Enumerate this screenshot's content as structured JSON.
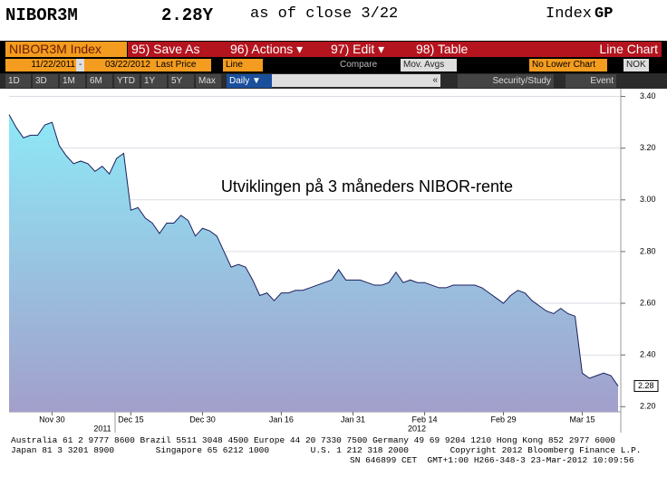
{
  "header": {
    "ticker": "NIBOR3M",
    "price": "2.28Y",
    "as_of": "as of close 3/22",
    "sector": "Index",
    "function": "GP"
  },
  "toolbar": {
    "security": "NIBOR3M Index",
    "buttons": [
      "95) Save As",
      "96) Actions ▾",
      "97) Edit ▾",
      "98) Table"
    ],
    "chart_kind": "Line Chart",
    "start_date": "11/22/2011",
    "date_sep": "-",
    "end_date": "03/22/2012",
    "field": "Last Price",
    "style": "Line",
    "compare": "Compare",
    "mov_avgs": "Mov. Avgs",
    "lower": "No Lower Chart",
    "currency": "NOK",
    "periods": [
      "1D",
      "3D",
      "1M",
      "6M",
      "YTD",
      "1Y",
      "5Y",
      "Max"
    ],
    "frequency": "Daily ▼",
    "collapse": "«",
    "study": "Security/Study",
    "event": "Event"
  },
  "chart_data": {
    "type": "line",
    "annotation": "Utviklingen på 3 måneders NIBOR-rente",
    "year_labels": [
      "2011",
      "2012"
    ],
    "categories": [
      null,
      null,
      null,
      null,
      null,
      null,
      "Nov 30",
      null,
      null,
      null,
      null,
      null,
      null,
      null,
      null,
      null,
      null,
      "Dec 15",
      null,
      null,
      null,
      null,
      null,
      null,
      null,
      null,
      null,
      "Dec 30",
      null,
      null,
      null,
      null,
      null,
      null,
      null,
      null,
      null,
      null,
      "Jan 16",
      null,
      null,
      null,
      null,
      null,
      null,
      null,
      null,
      null,
      "Jan 31",
      null,
      null,
      null,
      null,
      null,
      null,
      null,
      null,
      null,
      "Feb 14",
      null,
      null,
      null,
      null,
      null,
      null,
      null,
      null,
      null,
      null,
      "Feb 29",
      null,
      null,
      null,
      null,
      null,
      null,
      null,
      null,
      null,
      null,
      "Mar 15",
      null,
      null,
      null,
      null,
      null
    ],
    "series": [
      {
        "name": "NIBOR3M",
        "color": "#1b1f5e",
        "values": [
          3.33,
          3.28,
          3.24,
          3.25,
          3.25,
          3.29,
          3.3,
          3.21,
          3.17,
          3.14,
          3.15,
          3.14,
          3.11,
          3.13,
          3.1,
          3.16,
          3.18,
          2.96,
          2.97,
          2.93,
          2.91,
          2.87,
          2.91,
          2.91,
          2.94,
          2.92,
          2.86,
          2.89,
          2.88,
          2.86,
          2.8,
          2.74,
          2.75,
          2.74,
          2.69,
          2.63,
          2.64,
          2.61,
          2.64,
          2.64,
          2.65,
          2.65,
          2.66,
          2.67,
          2.68,
          2.69,
          2.73,
          2.69,
          2.69,
          2.69,
          2.68,
          2.67,
          2.67,
          2.68,
          2.72,
          2.68,
          2.69,
          2.68,
          2.68,
          2.67,
          2.66,
          2.66,
          2.67,
          2.67,
          2.67,
          2.67,
          2.66,
          2.64,
          2.62,
          2.6,
          2.63,
          2.65,
          2.64,
          2.61,
          2.59,
          2.57,
          2.56,
          2.58,
          2.56,
          2.55,
          2.33,
          2.31,
          2.32,
          2.33,
          2.32,
          2.28
        ],
        "fill_top": "#8ee9f7",
        "fill_bottom": "#a29fcb"
      }
    ],
    "ylim": [
      2.18,
      3.43
    ],
    "yticks": [
      {
        "value": 2.2,
        "label": "2.20"
      },
      {
        "value": 2.4,
        "label": "2.40"
      },
      {
        "value": 2.6,
        "label": "2.60"
      },
      {
        "value": 2.8,
        "label": "2.80"
      },
      {
        "value": 3.0,
        "label": "3.00"
      },
      {
        "value": 3.2,
        "label": "3.20"
      },
      {
        "value": 3.4,
        "label": "3.40"
      }
    ],
    "grid": true,
    "axis_side": "right",
    "last_value_label": "2.28"
  },
  "footer": {
    "lines": [
      "Australia 61 2 9777 8600 Brazil 5511 3048 4500 Europe 44 20 7330 7500 Germany 49 69 9204 1210 Hong Kong 852 2977 6000",
      "Japan 81 3 3201 8900        Singapore 65 6212 1000        U.S. 1 212 318 2000        Copyright 2012 Bloomberg Finance L.P.",
      "SN 646899 CET  GMT+1:00 H266-348-3 23-Mar-2012 10:09:56"
    ]
  }
}
